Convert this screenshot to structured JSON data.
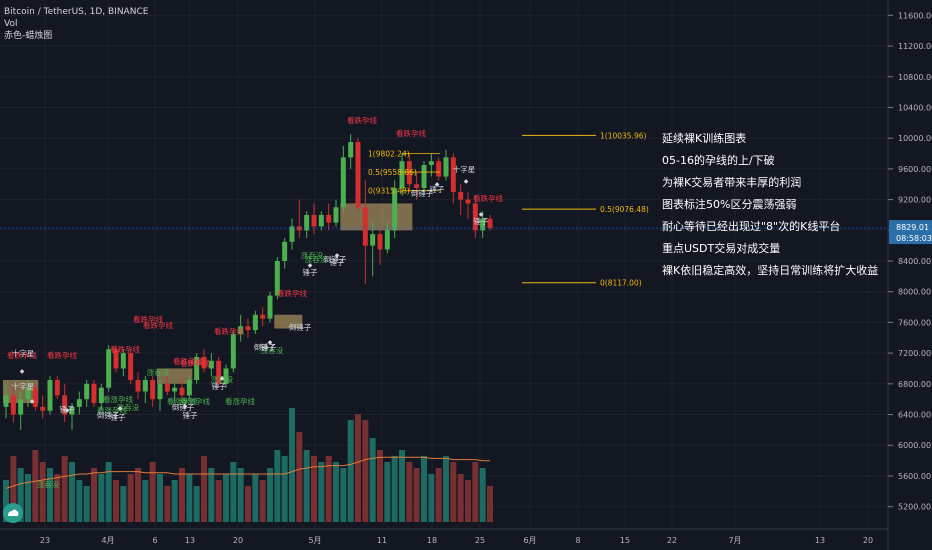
{
  "header": {
    "title": "Bitcoin / TetherUS, 1D, BINANCE",
    "indicator": "赤色-蜡烛图",
    "vol_label": "Vol"
  },
  "annotation_lines": [
    "延续裸K训练图表",
    "05-16的孕线的上/下破",
    "为裸K交易者带来丰厚的利润",
    "图表标注50%区分震荡强弱",
    "耐心等待已经出现过\"8\"次的K线平台",
    "重点USDT交易对成交量",
    "裸K依旧稳定高效，坚持日常训练将扩大收益"
  ],
  "chart_data": {
    "type": "candlestick",
    "price_axis": {
      "ticks": [
        "11600.00",
        "11200.00",
        "10800.00",
        "10400.00",
        "10000.00",
        "9600.00",
        "9200.00",
        "8800.00",
        "8400.00",
        "8000.00",
        "7600.00",
        "7200.00",
        "6800.00",
        "6400.00",
        "6000.00",
        "5600.00",
        "5200.00"
      ],
      "ylim": [
        5000,
        11800
      ]
    },
    "time_axis": {
      "ticks": [
        "23",
        "4月",
        "6",
        "13",
        "20",
        "5月",
        "11",
        "18",
        "25",
        "6月",
        "8",
        "15",
        "22",
        "7月",
        "13",
        "20"
      ]
    },
    "current_price": "8829.01",
    "countdown": "08:58:03",
    "colors": {
      "up": "#26a69a",
      "up_body": "#4caf50",
      "down": "#ef5350",
      "down_body": "#d32f2f",
      "fib": "#f0b90b",
      "ma": "#e07b39",
      "annot_red": "#f23645",
      "annot_green": "#4caf50"
    },
    "fib_levels": [
      {
        "label": "1(10035.96)",
        "value": 10035.96
      },
      {
        "label": "0.5(9076.48)",
        "value": 9076.48
      },
      {
        "label": "0(8117.00)",
        "value": 8117.0
      },
      {
        "label": "1(9802.24)",
        "value": 9802.24
      },
      {
        "label": "0.5(9558.86)",
        "value": 9558.86
      },
      {
        "label": "0(9315.48)",
        "value": 9315.48
      }
    ],
    "pattern_labels": [
      {
        "text": "看跌孕线",
        "color": "red"
      },
      {
        "text": "看跌孕线",
        "color": "red"
      },
      {
        "text": "看跌孕线",
        "color": "red"
      },
      {
        "text": "看跌孕线",
        "color": "red"
      },
      {
        "text": "看跌孕线",
        "color": "red"
      },
      {
        "text": "看跌孕线",
        "color": "red"
      },
      {
        "text": "看跌孕线",
        "color": "red"
      },
      {
        "text": "看跌孕线",
        "color": "red"
      },
      {
        "text": "看跌孕线",
        "color": "red"
      },
      {
        "text": "看跌孕线",
        "color": "red"
      },
      {
        "text": "看跌孕线",
        "color": "red"
      },
      {
        "text": "看跌孕线",
        "color": "red"
      },
      {
        "text": "涨吞没",
        "color": "green"
      },
      {
        "text": "涨吞没",
        "color": "green"
      },
      {
        "text": "涨吞没",
        "color": "green"
      },
      {
        "text": "涨吞没",
        "color": "green"
      },
      {
        "text": "涨吞没",
        "color": "green"
      },
      {
        "text": "涨吞没",
        "color": "green"
      },
      {
        "text": "涨吞没",
        "color": "green"
      },
      {
        "text": "看涨孕线",
        "color": "green"
      },
      {
        "text": "看涨孕线",
        "color": "green"
      },
      {
        "text": "看涨孕线",
        "color": "green"
      },
      {
        "text": "看涨孕线",
        "color": "green"
      },
      {
        "text": "看涨孕线",
        "color": "green"
      },
      {
        "text": "十字星",
        "color": "white"
      },
      {
        "text": "十字星",
        "color": "white"
      },
      {
        "text": "十字星",
        "color": "white"
      },
      {
        "text": "锤子",
        "color": "white"
      },
      {
        "text": "锤子",
        "color": "white"
      },
      {
        "text": "锤子",
        "color": "white"
      },
      {
        "text": "锤子",
        "color": "white"
      },
      {
        "text": "锤子",
        "color": "white"
      },
      {
        "text": "锤子",
        "color": "white"
      },
      {
        "text": "锤子",
        "color": "white"
      },
      {
        "text": "锤子",
        "color": "white"
      },
      {
        "text": "锤子",
        "color": "white"
      },
      {
        "text": "倒锤子",
        "color": "white"
      },
      {
        "text": "倒锤子",
        "color": "white"
      },
      {
        "text": "倒锤子",
        "color": "white"
      },
      {
        "text": "倒锤子",
        "color": "white"
      },
      {
        "text": "倒锤子",
        "color": "white"
      },
      {
        "text": "倒锤子",
        "color": "white"
      }
    ],
    "candles": [
      {
        "o": 6500,
        "h": 6800,
        "l": 6350,
        "c": 6650
      },
      {
        "o": 6650,
        "h": 6780,
        "l": 6300,
        "c": 6400
      },
      {
        "o": 6400,
        "h": 6700,
        "l": 6200,
        "c": 6600
      },
      {
        "o": 6600,
        "h": 6850,
        "l": 6500,
        "c": 6750
      },
      {
        "o": 6750,
        "h": 6800,
        "l": 6450,
        "c": 6500
      },
      {
        "o": 6500,
        "h": 6650,
        "l": 6350,
        "c": 6450
      },
      {
        "o": 6450,
        "h": 6900,
        "l": 6400,
        "c": 6850
      },
      {
        "o": 6850,
        "h": 6900,
        "l": 6600,
        "c": 6650
      },
      {
        "o": 6650,
        "h": 6800,
        "l": 6300,
        "c": 6400
      },
      {
        "o": 6400,
        "h": 6550,
        "l": 6200,
        "c": 6500
      },
      {
        "o": 6500,
        "h": 6700,
        "l": 6400,
        "c": 6600
      },
      {
        "o": 6600,
        "h": 6850,
        "l": 6500,
        "c": 6800
      },
      {
        "o": 6800,
        "h": 6850,
        "l": 6500,
        "c": 6550
      },
      {
        "o": 6550,
        "h": 6800,
        "l": 6450,
        "c": 6750
      },
      {
        "o": 6750,
        "h": 7300,
        "l": 6700,
        "c": 7250
      },
      {
        "o": 7250,
        "h": 7300,
        "l": 6950,
        "c": 7000
      },
      {
        "o": 7000,
        "h": 7250,
        "l": 6900,
        "c": 7200
      },
      {
        "o": 7200,
        "h": 7250,
        "l": 6800,
        "c": 6850
      },
      {
        "o": 6850,
        "h": 6950,
        "l": 6600,
        "c": 6700
      },
      {
        "o": 6700,
        "h": 6900,
        "l": 6550,
        "c": 6850
      },
      {
        "o": 6850,
        "h": 6900,
        "l": 6500,
        "c": 6600
      },
      {
        "o": 6600,
        "h": 6850,
        "l": 6450,
        "c": 6800
      },
      {
        "o": 6800,
        "h": 6900,
        "l": 6650,
        "c": 6700
      },
      {
        "o": 6700,
        "h": 6800,
        "l": 6550,
        "c": 6750
      },
      {
        "o": 6750,
        "h": 6850,
        "l": 6600,
        "c": 6650
      },
      {
        "o": 6650,
        "h": 6900,
        "l": 6600,
        "c": 6850
      },
      {
        "o": 6850,
        "h": 7200,
        "l": 6800,
        "c": 7150
      },
      {
        "o": 7150,
        "h": 7250,
        "l": 6950,
        "c": 7000
      },
      {
        "o": 7000,
        "h": 7200,
        "l": 6900,
        "c": 7100
      },
      {
        "o": 7100,
        "h": 7150,
        "l": 6750,
        "c": 6800
      },
      {
        "o": 6800,
        "h": 7050,
        "l": 6750,
        "c": 7000
      },
      {
        "o": 7000,
        "h": 7500,
        "l": 6950,
        "c": 7450
      },
      {
        "o": 7450,
        "h": 7700,
        "l": 7350,
        "c": 7550
      },
      {
        "o": 7550,
        "h": 7650,
        "l": 7400,
        "c": 7500
      },
      {
        "o": 7500,
        "h": 7750,
        "l": 7450,
        "c": 7700
      },
      {
        "o": 7700,
        "h": 7800,
        "l": 7550,
        "c": 7650
      },
      {
        "o": 7650,
        "h": 8000,
        "l": 7600,
        "c": 7950
      },
      {
        "o": 7950,
        "h": 8450,
        "l": 7900,
        "c": 8400
      },
      {
        "o": 8400,
        "h": 8700,
        "l": 8300,
        "c": 8650
      },
      {
        "o": 8650,
        "h": 8950,
        "l": 8550,
        "c": 8850
      },
      {
        "o": 8850,
        "h": 9200,
        "l": 8700,
        "c": 8800
      },
      {
        "o": 8800,
        "h": 9050,
        "l": 8700,
        "c": 9000
      },
      {
        "o": 9000,
        "h": 9150,
        "l": 8750,
        "c": 8850
      },
      {
        "o": 8850,
        "h": 9050,
        "l": 8800,
        "c": 9000
      },
      {
        "o": 9000,
        "h": 9150,
        "l": 8800,
        "c": 8900
      },
      {
        "o": 8900,
        "h": 9200,
        "l": 8850,
        "c": 9100
      },
      {
        "o": 9100,
        "h": 9900,
        "l": 9050,
        "c": 9750
      },
      {
        "o": 9750,
        "h": 10050,
        "l": 9600,
        "c": 9950
      },
      {
        "o": 9950,
        "h": 10000,
        "l": 9050,
        "c": 9100
      },
      {
        "o": 9100,
        "h": 9450,
        "l": 8100,
        "c": 8600
      },
      {
        "o": 8600,
        "h": 8900,
        "l": 8200,
        "c": 8750
      },
      {
        "o": 8750,
        "h": 8800,
        "l": 8350,
        "c": 8550
      },
      {
        "o": 8550,
        "h": 8900,
        "l": 8500,
        "c": 8800
      },
      {
        "o": 8800,
        "h": 9450,
        "l": 8700,
        "c": 9350
      },
      {
        "o": 9350,
        "h": 9800,
        "l": 9250,
        "c": 9700
      },
      {
        "o": 9700,
        "h": 9800,
        "l": 9300,
        "c": 9400
      },
      {
        "o": 9400,
        "h": 9550,
        "l": 9200,
        "c": 9350
      },
      {
        "o": 9350,
        "h": 9700,
        "l": 9300,
        "c": 9650
      },
      {
        "o": 9650,
        "h": 9800,
        "l": 9500,
        "c": 9700
      },
      {
        "o": 9700,
        "h": 9750,
        "l": 9450,
        "c": 9500
      },
      {
        "o": 9500,
        "h": 9850,
        "l": 9450,
        "c": 9750
      },
      {
        "o": 9750,
        "h": 9800,
        "l": 9150,
        "c": 9300
      },
      {
        "o": 9300,
        "h": 9400,
        "l": 9000,
        "c": 9200
      },
      {
        "o": 9200,
        "h": 9300,
        "l": 8950,
        "c": 9150
      },
      {
        "o": 9150,
        "h": 9250,
        "l": 8700,
        "c": 8800
      },
      {
        "o": 8800,
        "h": 9050,
        "l": 8700,
        "c": 8950
      },
      {
        "o": 8950,
        "h": 9000,
        "l": 8800,
        "c": 8829
      }
    ],
    "volumes": [
      0.35,
      0.55,
      0.45,
      0.4,
      0.6,
      0.5,
      0.45,
      0.4,
      0.55,
      0.5,
      0.35,
      0.3,
      0.45,
      0.4,
      0.5,
      0.35,
      0.3,
      0.4,
      0.45,
      0.35,
      0.5,
      0.4,
      0.3,
      0.35,
      0.45,
      0.4,
      0.3,
      0.55,
      0.45,
      0.35,
      0.4,
      0.5,
      0.45,
      0.3,
      0.4,
      0.35,
      0.45,
      0.6,
      0.55,
      0.95,
      0.75,
      0.6,
      0.55,
      0.5,
      0.55,
      0.5,
      0.45,
      0.85,
      0.9,
      0.85,
      0.7,
      0.6,
      0.5,
      0.55,
      0.6,
      0.5,
      0.45,
      0.55,
      0.4,
      0.45,
      0.55,
      0.5,
      0.4,
      0.35,
      0.5,
      0.45,
      0.3
    ],
    "ma_values": [
      0.28,
      0.3,
      0.32,
      0.33,
      0.34,
      0.35,
      0.36,
      0.37,
      0.38,
      0.39,
      0.4,
      0.4,
      0.41,
      0.41,
      0.42,
      0.42,
      0.42,
      0.42,
      0.42,
      0.41,
      0.41,
      0.41,
      0.41,
      0.4,
      0.4,
      0.4,
      0.4,
      0.4,
      0.4,
      0.4,
      0.4,
      0.4,
      0.4,
      0.4,
      0.4,
      0.4,
      0.4,
      0.4,
      0.4,
      0.42,
      0.44,
      0.45,
      0.46,
      0.46,
      0.47,
      0.47,
      0.47,
      0.48,
      0.5,
      0.52,
      0.53,
      0.54,
      0.54,
      0.54,
      0.54,
      0.54,
      0.54,
      0.54,
      0.53,
      0.53,
      0.53,
      0.52,
      0.52,
      0.52,
      0.52,
      0.51,
      0.51
    ]
  }
}
